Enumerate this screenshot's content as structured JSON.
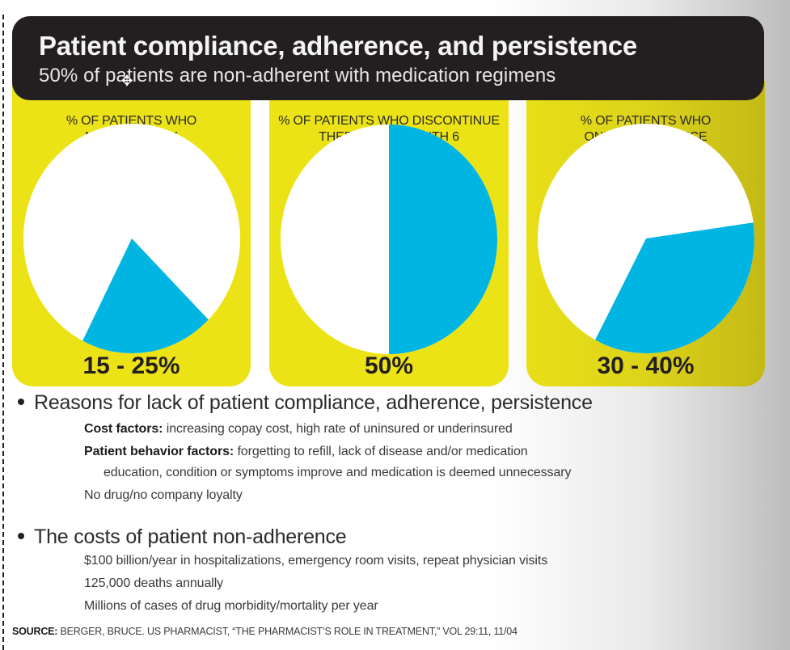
{
  "header": {
    "title": "Patient compliance, adherence, and persistence",
    "subtitle": "50% of patients are non-adherent with medication regimens"
  },
  "cursor_icon": "move-cursor-icon",
  "colors": {
    "header_bg": "#231f20",
    "panel_yellow": "#ece316",
    "pie_blue": "#00b5e2",
    "pie_white": "#ffffff"
  },
  "chart_data": [
    {
      "type": "pie",
      "title": "% OF PATIENTS WHO NEVER FILL Rx",
      "title_lines": [
        "% OF PATIENTS WHO",
        "NEVER FILL Rx"
      ],
      "label": "15 - 25%",
      "slices": [
        {
          "name": "Never fill Rx",
          "value": 20,
          "color": "#00b5e2"
        },
        {
          "name": "Other",
          "value": 80,
          "color": "#ffffff"
        }
      ]
    },
    {
      "type": "pie",
      "title": "% OF PATIENTS WHO DISCONTINUE THERAPY BY MONTH 6",
      "title_lines": [
        "% OF PATIENTS WHO DISCONTINUE",
        "THERAPY BY MONTH 6"
      ],
      "label": "50%",
      "slices": [
        {
          "name": "Discontinue by month 6",
          "value": 50,
          "color": "#00b5e2"
        },
        {
          "name": "Other",
          "value": 50,
          "color": "#ffffff"
        }
      ]
    },
    {
      "type": "pie",
      "title": "% OF PATIENTS WHO ONLY FILL Rx ONCE",
      "title_lines": [
        "% OF PATIENTS WHO",
        "ONLY FILL Rx ONCE"
      ],
      "label": "30 - 40%",
      "slices": [
        {
          "name": "Only fill Rx once",
          "value": 35,
          "color": "#00b5e2"
        },
        {
          "name": "Other",
          "value": 65,
          "color": "#ffffff"
        }
      ]
    }
  ],
  "reasons": {
    "heading": "Reasons for lack of patient compliance, adherence, persistence",
    "items": [
      {
        "label": "Cost factors:",
        "text": " increasing copay cost, high rate of uninsured or underinsured"
      },
      {
        "label": "Patient behavior factors:",
        "text": " forgetting to refill, lack of disease and/or medication"
      },
      {
        "label": "",
        "text": "education, condition or symptoms improve and medication is deemed unnecessary"
      },
      {
        "label": "",
        "text": "No drug/no company loyalty"
      }
    ]
  },
  "costs": {
    "heading": "The costs of patient non-adherence",
    "items": [
      "$100 billion/year in hospitalizations, emergency room visits, repeat physician visits",
      "125,000 deaths annually",
      "Millions of cases of drug morbidity/mortality per year"
    ]
  },
  "source": {
    "label": "SOURCE:",
    "text": " BERGER, BRUCE. US PHARMACIST, “THE PHARMACIST’S ROLE IN TREATMENT,” VOL 29:11, 11/04"
  }
}
